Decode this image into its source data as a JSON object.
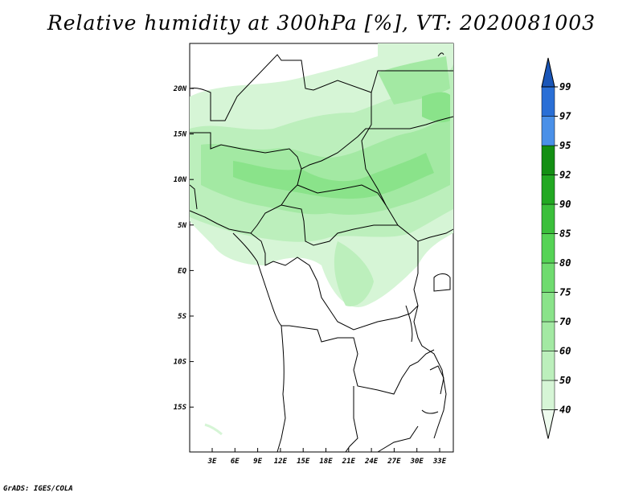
{
  "title": "Relative humidity at 300hPa [%], VT: 2020081003",
  "credit": "GrADS: IGES/COLA",
  "map": {
    "lon_ticks": [
      "3E",
      "6E",
      "9E",
      "12E",
      "15E",
      "18E",
      "21E",
      "24E",
      "27E",
      "30E",
      "33E"
    ],
    "lat_ticks": [
      "20N",
      "15N",
      "10N",
      "5N",
      "EQ",
      "5S",
      "10S",
      "15S"
    ]
  },
  "colorbar": {
    "levels": [
      "40",
      "50",
      "60",
      "70",
      "75",
      "80",
      "85",
      "90",
      "92",
      "95",
      "97",
      "99"
    ],
    "colors": [
      "#eefbee",
      "#d6f5d6",
      "#bcefbc",
      "#a3e9a3",
      "#8ae38a",
      "#6fdb6f",
      "#55d355",
      "#3bbf3b",
      "#22a822",
      "#138f13",
      "#4a90e8",
      "#2a6fd6",
      "#1a56b8"
    ]
  }
}
